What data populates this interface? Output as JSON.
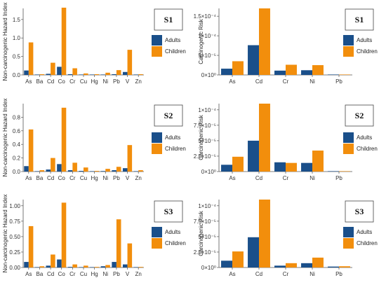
{
  "colors": {
    "adults": "#1a4f8a",
    "children": "#f28e0c",
    "axis": "#555555",
    "tick": "#333333"
  },
  "legend": {
    "adults_label": "Adults",
    "children_label": "Children"
  },
  "chart_data": [
    {
      "type": "bar",
      "scenario": "S1",
      "ylabel": "Non-carcinogenic Hazard Index",
      "categories": [
        "As",
        "Ba",
        "Cd",
        "Co",
        "Cr",
        "Cu",
        "Hg",
        "Ni",
        "Pb",
        "V",
        "Zn"
      ],
      "ylim": [
        0,
        1.8
      ],
      "yticks": [
        0,
        0.5,
        1.0,
        1.5
      ],
      "ytick_labels": [
        "0.0",
        "0.5",
        "1.0",
        "1.5"
      ],
      "series": [
        {
          "name": "Adults",
          "values": [
            0.12,
            0.01,
            0.03,
            0.22,
            0.02,
            0.01,
            0.004,
            0.01,
            0.02,
            0.08,
            0.002
          ]
        },
        {
          "name": "Children",
          "values": [
            0.88,
            0.02,
            0.33,
            1.82,
            0.18,
            0.04,
            0.02,
            0.06,
            0.13,
            0.68,
            0.02
          ]
        }
      ]
    },
    {
      "type": "bar",
      "scenario": "S1",
      "ylabel": "Carcinogenic Risk",
      "categories": [
        "As",
        "Cd",
        "Cr",
        "Ni",
        "Pb"
      ],
      "ylim": [
        0,
        0.00017
      ],
      "yticks": [
        0,
        5e-05,
        0.0001,
        0.00015
      ],
      "ytick_labels": [
        "0×10⁰",
        "5×10⁻⁵",
        "1×10⁻⁴",
        "1.5×10⁻⁴"
      ],
      "series": [
        {
          "name": "Adults",
          "values": [
            1.6e-05,
            7.6e-05,
            1.1e-05,
            1.2e-05,
            1e-07
          ]
        },
        {
          "name": "Children",
          "values": [
            3.5e-05,
            0.00017,
            2.6e-05,
            2.5e-05,
            3e-07
          ]
        }
      ]
    },
    {
      "type": "bar",
      "scenario": "S2",
      "ylabel": "Non-carcinogenic Hazard Index",
      "categories": [
        "As",
        "Ba",
        "Cd",
        "Co",
        "Cr",
        "Cu",
        "Hg",
        "Ni",
        "Pb",
        "V",
        "Zn"
      ],
      "ylim": [
        0,
        1.0
      ],
      "yticks": [
        0,
        0.2,
        0.4,
        0.6,
        0.8
      ],
      "ytick_labels": [
        "0.0",
        "0.2",
        "0.4",
        "0.6",
        "0.8"
      ],
      "series": [
        {
          "name": "Adults",
          "values": [
            0.08,
            0.005,
            0.03,
            0.11,
            0.02,
            0.01,
            0.002,
            0.008,
            0.02,
            0.05,
            0.002
          ]
        },
        {
          "name": "Children",
          "values": [
            0.62,
            0.02,
            0.2,
            0.94,
            0.13,
            0.06,
            0.01,
            0.04,
            0.07,
            0.39,
            0.02
          ]
        }
      ]
    },
    {
      "type": "bar",
      "scenario": "S2",
      "ylabel": "Carcinogenic Risk",
      "categories": [
        "As",
        "Cd",
        "Cr",
        "Ni",
        "Pb"
      ],
      "ylim": [
        0,
        0.00011
      ],
      "yticks": [
        0,
        2.5e-05,
        5e-05,
        7.5e-05,
        0.0001
      ],
      "ytick_labels": [
        "0×10⁰",
        "2.5×10⁻⁵",
        "5×10⁻⁵",
        "7.5×10⁻⁵",
        "1×10⁻⁴"
      ],
      "series": [
        {
          "name": "Adults",
          "values": [
            1.1e-05,
            5e-05,
            1.5e-05,
            1.4e-05,
            1e-07
          ]
        },
        {
          "name": "Children",
          "values": [
            2.4e-05,
            0.00011,
            1.4e-05,
            3.4e-05,
            2e-07
          ]
        }
      ]
    },
    {
      "type": "bar",
      "scenario": "S3",
      "ylabel": "Non-carcinogenic Hazard Index",
      "categories": [
        "As",
        "Ba",
        "Cd",
        "Co",
        "Cr",
        "Cu",
        "Hg",
        "Ni",
        "Pb",
        "V",
        "Zn"
      ],
      "ylim": [
        0,
        1.1
      ],
      "yticks": [
        0,
        0.25,
        0.5,
        0.75,
        1.0
      ],
      "ytick_labels": [
        "0.00",
        "0.25",
        "0.50",
        "0.75",
        "1.00"
      ],
      "series": [
        {
          "name": "Adults",
          "values": [
            0.09,
            0.005,
            0.03,
            0.13,
            0.01,
            0.004,
            0.002,
            0.02,
            0.09,
            0.05,
            0.002
          ]
        },
        {
          "name": "Children",
          "values": [
            0.67,
            0.02,
            0.21,
            1.05,
            0.05,
            0.03,
            0.01,
            0.04,
            0.78,
            0.39,
            0.01
          ]
        }
      ]
    },
    {
      "type": "bar",
      "scenario": "S3",
      "ylabel": "Carcinogenic Risk",
      "categories": [
        "As",
        "Cd",
        "Cr",
        "Ni",
        "Pb"
      ],
      "ylim": [
        0,
        0.00011
      ],
      "yticks": [
        0,
        2.5e-05,
        5e-05,
        7.5e-05,
        0.0001
      ],
      "ytick_labels": [
        "0×10⁰",
        "2.5×10⁻⁵",
        "5×10⁻⁵",
        "7.5×10⁻⁵",
        "1×10⁻⁴"
      ],
      "series": [
        {
          "name": "Adults",
          "values": [
            1.1e-05,
            4.9e-05,
            3e-06,
            7e-06,
            1.5e-06
          ]
        },
        {
          "name": "Children",
          "values": [
            2.6e-05,
            0.00011,
            7e-06,
            1.6e-05,
            2e-06
          ]
        }
      ]
    }
  ]
}
